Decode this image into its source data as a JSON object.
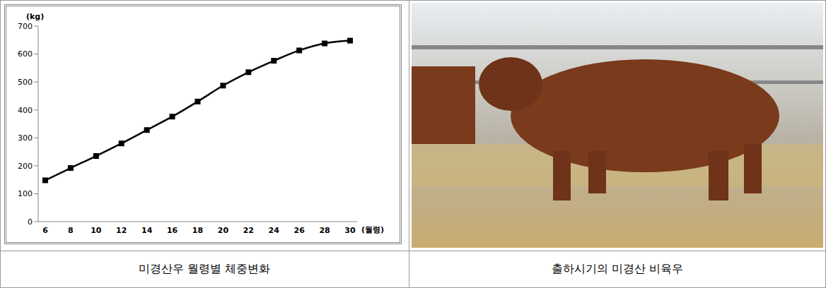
{
  "chart_data": {
    "type": "line",
    "title": "미경산우 월령별 체중변화",
    "xlabel": "(월령)",
    "ylabel": "(kg)",
    "categories": [
      "6",
      "8",
      "10",
      "12",
      "14",
      "16",
      "18",
      "20",
      "22",
      "24",
      "26",
      "28",
      "30"
    ],
    "values": [
      148,
      192,
      235,
      280,
      328,
      376,
      430,
      487,
      535,
      576,
      613,
      638,
      648
    ],
    "color": "#000000",
    "marker": "square",
    "ylim": [
      0,
      700
    ],
    "yticks": [
      0,
      100,
      200,
      300,
      400,
      500,
      600,
      700
    ],
    "grid": false
  },
  "photo": {
    "caption": "출하시기의 미경산 비육우"
  }
}
